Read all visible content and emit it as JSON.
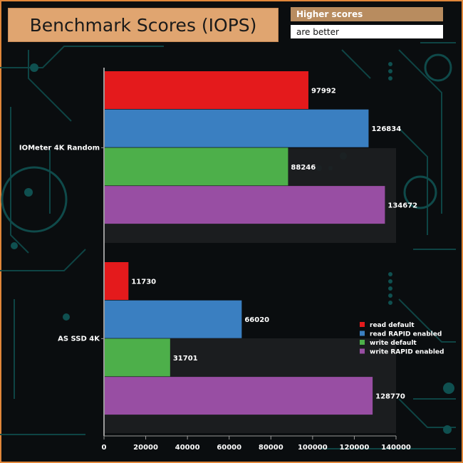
{
  "header": {
    "title": "Benchmark Scores (IOPS)",
    "note_line1": "Higher scores",
    "note_line2": "are better"
  },
  "chart_data": {
    "type": "bar",
    "orientation": "horizontal",
    "title": "Benchmark Scores (IOPS)",
    "categories": [
      "IOMeter 4K Random",
      "AS SSD 4K"
    ],
    "series": [
      {
        "name": "read default",
        "color": "#e41a1c",
        "values": [
          97992,
          11730
        ]
      },
      {
        "name": "read RAPID enabled",
        "color": "#3a7fc1",
        "values": [
          126834,
          66020
        ]
      },
      {
        "name": "write default",
        "color": "#4daf4a",
        "values": [
          88246,
          31701
        ]
      },
      {
        "name": "write RAPID enabled",
        "color": "#984ea3",
        "values": [
          134672,
          128770
        ]
      }
    ],
    "xlim": [
      0,
      140000
    ],
    "xticks": [
      0,
      20000,
      40000,
      60000,
      80000,
      100000,
      120000,
      140000
    ],
    "xlabel": "",
    "ylabel": "",
    "grid": false,
    "legend": "right"
  }
}
